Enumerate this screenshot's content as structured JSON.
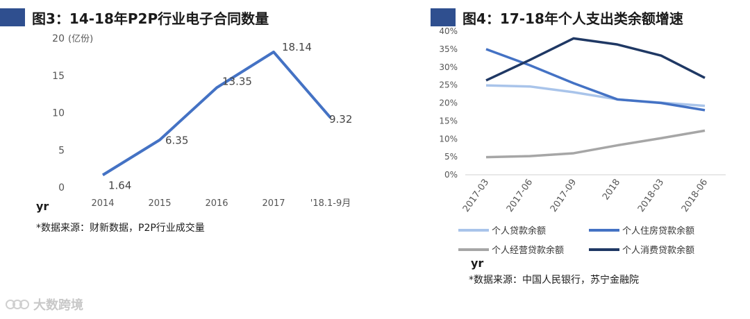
{
  "left": {
    "title": "图3：14-18年P2P行业电子合同数量",
    "yr": "yr",
    "source": "*数据来源：财新数据，P2P行业成交量",
    "chart_data": {
      "type": "line",
      "unit_label": "(亿份)",
      "categories": [
        "2014",
        "2015",
        "2016",
        "2017",
        "'18.1-9月"
      ],
      "values": [
        1.64,
        6.35,
        13.35,
        18.14,
        9.32
      ],
      "data_labels": [
        "1.64",
        "6.35",
        "13.35",
        "18.14",
        "9.32"
      ],
      "yticks": [
        "0",
        "5",
        "10",
        "15",
        "20"
      ],
      "ylim": [
        0,
        20
      ],
      "color": "#4472c4",
      "grid": false
    }
  },
  "right": {
    "title": "图4：17-18年个人支出类余额增速",
    "yr": "yr",
    "source": "*数据来源：中国人民银行，苏宁金融院",
    "chart_data": {
      "type": "line",
      "categories": [
        "2017-03",
        "2017-06",
        "2017-09",
        "2018",
        "2018-03",
        "2018-06"
      ],
      "yticks": [
        "0%",
        "5%",
        "10%",
        "15%",
        "20%",
        "25%",
        "30%",
        "35%",
        "40%"
      ],
      "ylim": [
        0,
        40
      ],
      "legend_position": "bottom",
      "grid": false,
      "series": [
        {
          "name": "个人贷款余额",
          "color": "#a9c4ea",
          "values": [
            24.9,
            24.6,
            23.0,
            21.0,
            20.1,
            19.2
          ]
        },
        {
          "name": "个人住房贷款余额",
          "color": "#4472c4",
          "values": [
            35.0,
            30.5,
            25.5,
            21.0,
            20.0,
            18.0
          ]
        },
        {
          "name": "个人经营贷款余额",
          "color": "#a6a6a6",
          "values": [
            4.9,
            5.2,
            6.0,
            8.2,
            10.2,
            12.3
          ]
        },
        {
          "name": "个人消费贷款余额",
          "color": "#1f3864",
          "values": [
            26.3,
            32.0,
            38.0,
            36.3,
            33.2,
            27.0
          ]
        }
      ]
    }
  },
  "watermark": {
    "text": "大数跨境"
  }
}
